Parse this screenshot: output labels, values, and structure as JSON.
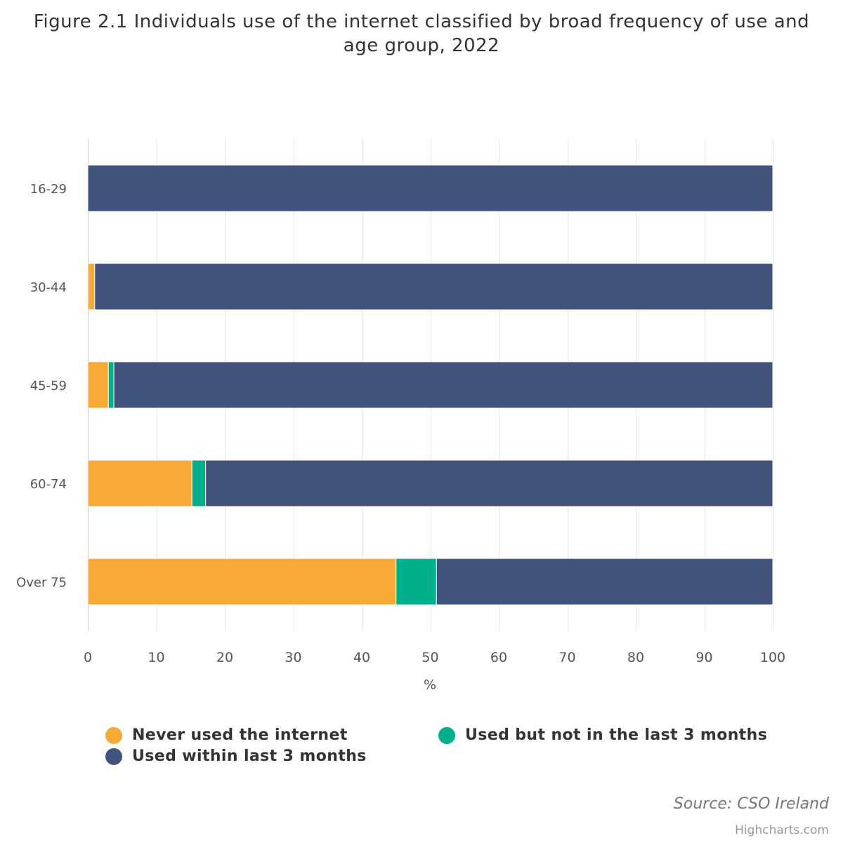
{
  "chart_data": {
    "type": "bar",
    "orientation": "horizontal",
    "stacked": true,
    "title": "Figure 2.1 Individuals use of the internet classified by broad frequency of use and age group, 2022",
    "categories": [
      "16-29",
      "30-44",
      "45-59",
      "60-74",
      "Over 75"
    ],
    "series": [
      {
        "name": "Never used the internet",
        "color": "#f7a935",
        "values": [
          0,
          1,
          3,
          15.2,
          45
        ]
      },
      {
        "name": "Used but not in the last 3 months",
        "color": "#00b08a",
        "values": [
          0,
          0,
          0.8,
          2,
          5.9
        ]
      },
      {
        "name": "Used within last 3 months",
        "color": "#41527d",
        "values": [
          100,
          99,
          96.2,
          82.8,
          49.1
        ]
      }
    ],
    "xlabel": "%",
    "ylabel": "",
    "xlim": [
      0,
      100
    ],
    "xticks": [
      0,
      10,
      20,
      30,
      40,
      50,
      60,
      70,
      80,
      90,
      100
    ],
    "grid": true,
    "legend_position": "bottom"
  },
  "source": "Source: CSO Ireland",
  "credits": "Highcharts.com"
}
